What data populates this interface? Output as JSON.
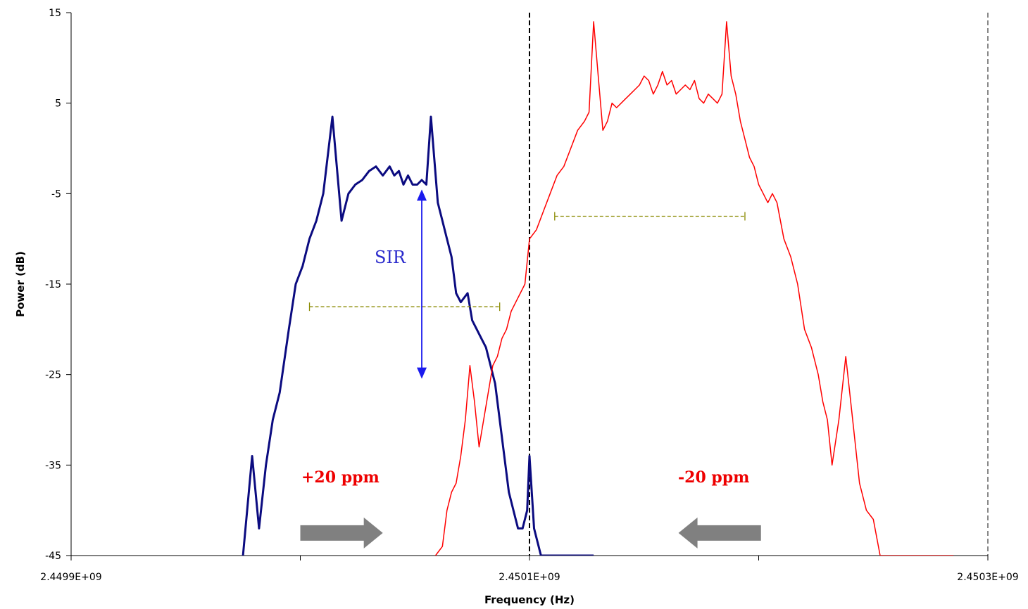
{
  "chart_data": {
    "type": "line",
    "xlabel": "Frequency (Hz)",
    "ylabel": "Power (dB)",
    "xlim": [
      2449900000.0,
      2450300000.0
    ],
    "ylim": [
      -45,
      15
    ],
    "x_ticks": [
      2449900000.0,
      2450000000.0,
      2450100000.0,
      2450200000.0,
      2450300000.0
    ],
    "x_tick_labels": [
      "2.4499E+09",
      "",
      "2.4501E+09",
      "",
      "2.4503E+09"
    ],
    "y_ticks": [
      15,
      5,
      -5,
      -15,
      -25,
      -35,
      -45
    ],
    "y_tick_labels": [
      "15",
      "5",
      "-5",
      "-15",
      "-25",
      "-35",
      "-45"
    ],
    "grid": false,
    "reference_lines": [
      {
        "x": 2450100000.0,
        "style": "dashed",
        "color": "#000000"
      },
      {
        "x": 2450300000.0,
        "style": "dashed",
        "color": "#888888"
      }
    ],
    "series": [
      {
        "color": "#0b0b80",
        "width": 3,
        "x": [
          2449975000.0,
          2449979000.0,
          2449982000.0,
          2449985000.0,
          2449988000.0,
          2449991000.0,
          2449995000.0,
          2449998000.0,
          2450001000.0,
          2450004000.0,
          2450007000.0,
          2450010000.0,
          2450014000.0,
          2450018000.0,
          2450021000.0,
          2450024000.0,
          2450027000.0,
          2450030000.0,
          2450033000.0,
          2450036000.0,
          2450039000.0,
          2450041000.0,
          2450043000.0,
          2450045000.0,
          2450047000.0,
          2450049000.0,
          2450051000.0,
          2450053000.0,
          2450055000.0,
          2450057000.0,
          2450060000.0,
          2450062000.0,
          2450064000.0,
          2450066000.0,
          2450068000.0,
          2450070000.0,
          2450073000.0,
          2450075000.0,
          2450077000.0,
          2450079000.0,
          2450081000.0,
          2450083000.0,
          2450085000.0,
          2450087000.0,
          2450089000.0,
          2450091000.0,
          2450093000.0,
          2450095000.0,
          2450097000.0,
          2450099000.0,
          2450100000.0,
          2450102000.0,
          2450105000.0,
          2450108000.0,
          2450111000.0,
          2450114000.0,
          2450116000.0,
          2450118000.0,
          2450120000.0,
          2450122000.0,
          2450124000.0,
          2450126000.0,
          2450128000.0
        ],
        "values": [
          -45,
          -34,
          -42,
          -35,
          -30,
          -27,
          -20,
          -15,
          -13,
          -10,
          -8,
          -5,
          3.5,
          -8,
          -5,
          -4,
          -3.5,
          -2.5,
          -2,
          -3,
          -2,
          -3,
          -2.5,
          -4,
          -3,
          -4,
          -4,
          -3.5,
          -4,
          3.5,
          -6,
          -8,
          -10,
          -12,
          -16,
          -17,
          -16,
          -19,
          -20,
          -21,
          -22,
          -24,
          -26,
          -30,
          -34,
          -38,
          -40,
          -42,
          -42,
          -40,
          -34,
          -42,
          -45,
          -45,
          -45,
          -45,
          -45,
          -45,
          -45,
          -45,
          -45,
          -45,
          -45
        ]
      },
      {
        "color": "#ff0000",
        "width": 1.5,
        "x": [
          2450059000.0,
          2450062000.0,
          2450064000.0,
          2450066000.0,
          2450068000.0,
          2450070000.0,
          2450072000.0,
          2450074000.0,
          2450076000.0,
          2450078000.0,
          2450080000.0,
          2450082000.0,
          2450084000.0,
          2450086000.0,
          2450088000.0,
          2450090000.0,
          2450092000.0,
          2450094000.0,
          2450096000.0,
          2450098000.0,
          2450100000.0,
          2450103000.0,
          2450106000.0,
          2450109000.0,
          2450112000.0,
          2450115000.0,
          2450118000.0,
          2450121000.0,
          2450124000.0,
          2450126000.0,
          2450128000.0,
          2450130000.0,
          2450132000.0,
          2450134000.0,
          2450136000.0,
          2450138000.0,
          2450140000.0,
          2450142000.0,
          2450144000.0,
          2450146000.0,
          2450148000.0,
          2450150000.0,
          2450152000.0,
          2450154000.0,
          2450156000.0,
          2450158000.0,
          2450160000.0,
          2450162000.0,
          2450164000.0,
          2450166000.0,
          2450168000.0,
          2450170000.0,
          2450172000.0,
          2450174000.0,
          2450176000.0,
          2450178000.0,
          2450180000.0,
          2450182000.0,
          2450184000.0,
          2450186000.0,
          2450188000.0,
          2450190000.0,
          2450192000.0,
          2450194000.0,
          2450196000.0,
          2450198000.0,
          2450200000.0,
          2450202000.0,
          2450204000.0,
          2450206000.0,
          2450208000.0,
          2450211000.0,
          2450214000.0,
          2450217000.0,
          2450220000.0,
          2450223000.0,
          2450226000.0,
          2450228000.0,
          2450230000.0,
          2450232000.0,
          2450235000.0,
          2450238000.0,
          2450241000.0,
          2450244000.0,
          2450247000.0,
          2450250000.0,
          2450253000.0,
          2450256000.0,
          2450259000.0,
          2450262000.0,
          2450264000.0,
          2450267000.0,
          2450270000.0,
          2450273000.0,
          2450276000.0,
          2450279000.0,
          2450282000.0,
          2450285000.0
        ],
        "values": [
          -45,
          -44,
          -40,
          -38,
          -37,
          -34,
          -30,
          -24,
          -28,
          -33,
          -30,
          -27,
          -24,
          -23,
          -21,
          -20,
          -18,
          -17,
          -16,
          -15,
          -10,
          -9,
          -7,
          -5,
          -3,
          -2,
          0,
          2,
          3,
          4,
          14,
          8,
          2,
          3,
          5,
          4.5,
          5,
          5.5,
          6,
          6.5,
          7,
          8,
          7.5,
          6,
          7,
          8.5,
          7,
          7.5,
          6,
          6.5,
          7,
          6.5,
          7.5,
          5.5,
          5,
          6,
          5.5,
          5,
          6,
          14,
          8,
          6,
          3,
          1,
          -1,
          -2,
          -4,
          -5,
          -6,
          -5,
          -6,
          -10,
          -12,
          -15,
          -20,
          -22,
          -25,
          -28,
          -30,
          -35,
          -30,
          -23,
          -30,
          -37,
          -40,
          -41,
          -45,
          -45,
          -45,
          -45,
          -45,
          -45,
          -45,
          -45,
          -45,
          -45,
          -45,
          -45
        ]
      }
    ],
    "annotations": [
      {
        "text": "SIR",
        "color": "#2a2acc"
      },
      {
        "text": "+20 ppm",
        "color": "#ee0000"
      },
      {
        "text": "-20 ppm",
        "color": "#ee0000"
      }
    ],
    "dimension_lines": [
      {
        "x_start": 2450004000.0,
        "x_end": 2450087000.0,
        "y": -17.5,
        "color": "#8a8a00",
        "style": "dashed"
      },
      {
        "x_start": 2450111000.0,
        "x_end": 2450194000.0,
        "y": -7.5,
        "color": "#8a8a00",
        "style": "dashed"
      }
    ],
    "sir_arrow": {
      "x": 2450053000.0,
      "y_top": -5,
      "y_bottom": -25,
      "color": "#1a1aee"
    },
    "shift_arrows": [
      {
        "direction": "right",
        "x_start": 2450000000.0,
        "x_end": 2450036000.0,
        "y": -42.5,
        "color": "#808080"
      },
      {
        "direction": "left",
        "x_start": 2450201000.0,
        "x_end": 2450165000.0,
        "y": -42.5,
        "color": "#808080"
      }
    ]
  }
}
